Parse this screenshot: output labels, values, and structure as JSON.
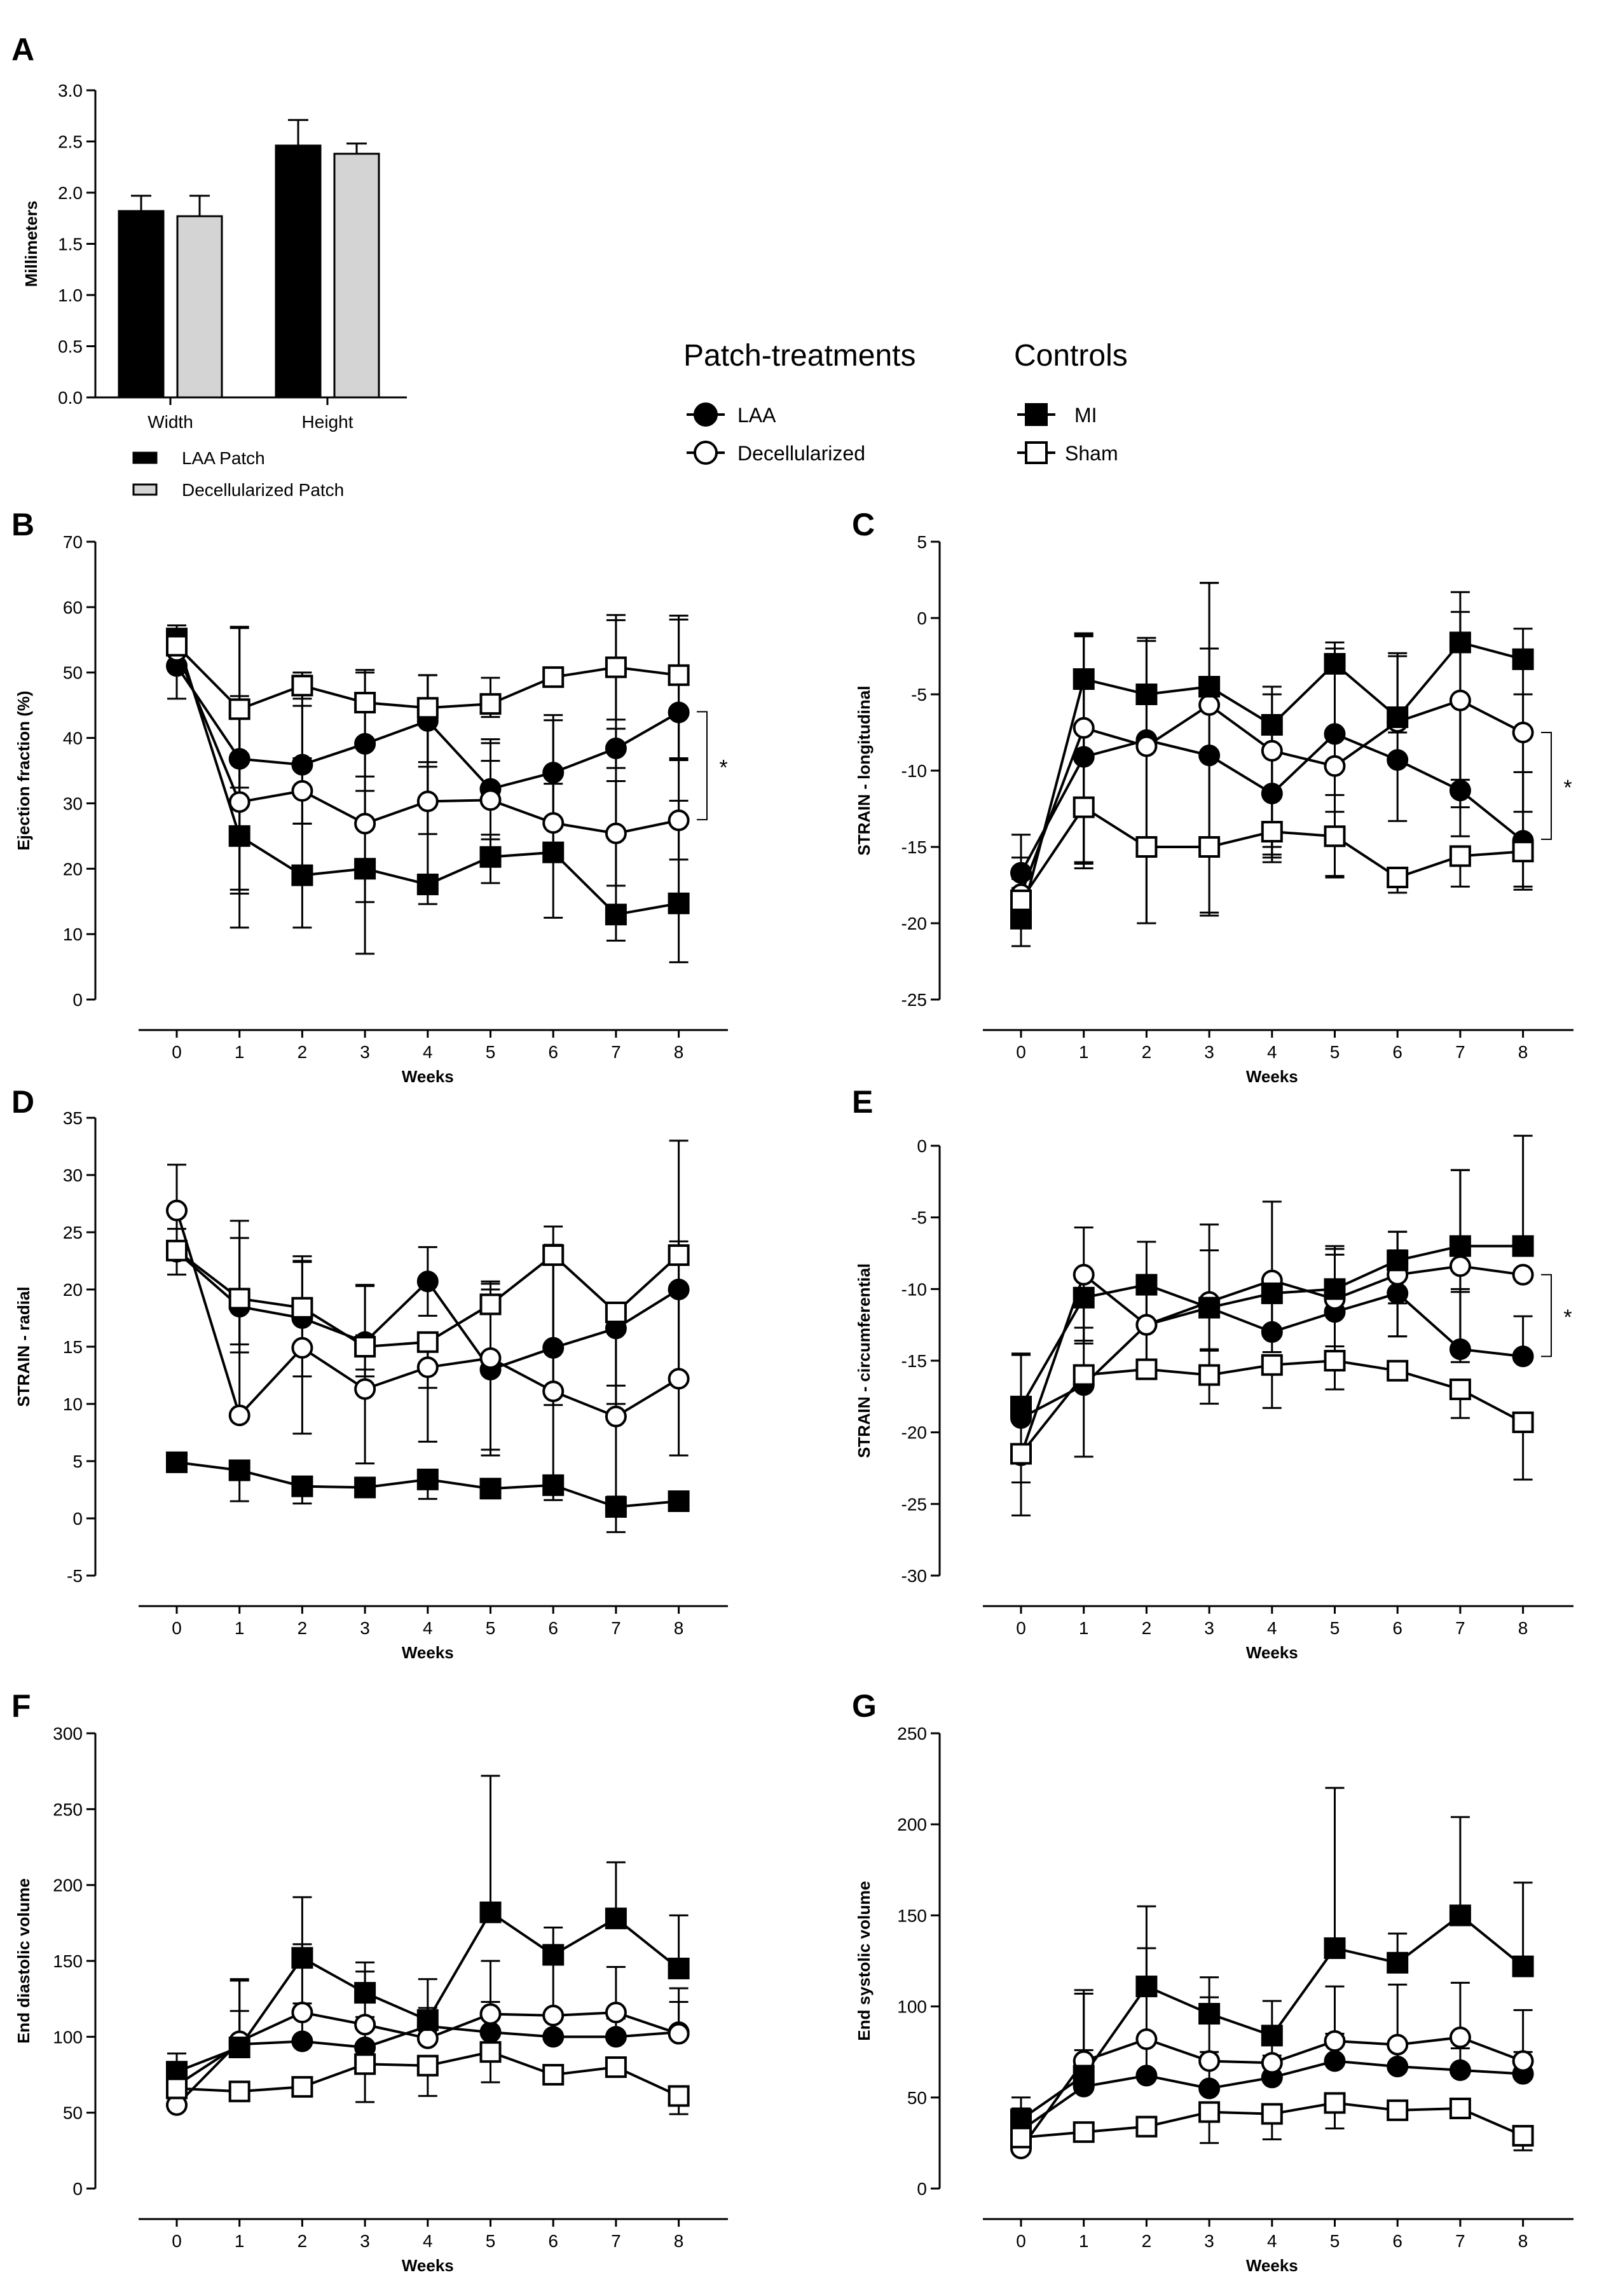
{
  "colors": {
    "ink": "#000000",
    "fill_gray": "#d4d4d4",
    "paper": "#ffffff"
  },
  "legend": {
    "patch_heading": "Patch-treatments",
    "controls_heading": "Controls",
    "items": [
      {
        "label": "LAA",
        "marker": "filled-circle"
      },
      {
        "label": "Decellularized",
        "marker": "open-circle"
      },
      {
        "label": "MI",
        "marker": "filled-square"
      },
      {
        "label": "Sham",
        "marker": "open-square"
      }
    ]
  },
  "chart_data": [
    {
      "id": "A",
      "type": "bar",
      "letter": "A",
      "ylabel": "Millimeters",
      "xlabel": "",
      "ylim": [
        0,
        3
      ],
      "yticks": [
        0,
        0.5,
        1,
        1.5,
        2,
        2.5,
        3
      ],
      "ytick_labels": [
        "0.0",
        "0.5",
        "1.0",
        "1.5",
        "2.0",
        "2.5",
        "3.0"
      ],
      "categories": [
        "Width",
        "Height"
      ],
      "series": [
        {
          "name": "LAA Patch",
          "values": [
            1.82,
            2.46
          ],
          "errors": [
            0.15,
            0.25
          ],
          "style": "black"
        },
        {
          "name": "Decellularized Patch",
          "values": [
            1.77,
            2.38
          ],
          "errors": [
            0.2,
            0.1
          ],
          "style": "gray"
        }
      ]
    },
    {
      "id": "B",
      "type": "line",
      "letter": "B",
      "ylabel": "Ejection fraction (%)",
      "xlabel": "Weeks",
      "x": [
        0,
        1,
        2,
        3,
        4,
        5,
        6,
        7,
        8
      ],
      "ylim": [
        0,
        70
      ],
      "yticks": [
        0,
        10,
        20,
        30,
        40,
        50,
        60,
        70
      ],
      "ytick_labels": [
        "0",
        "10",
        "20",
        "30",
        "40",
        "50",
        "60",
        "70"
      ],
      "significance": {
        "label": "*",
        "y1": 44,
        "y2": 27.5
      },
      "series": [
        {
          "name": "LAA",
          "values": [
            51,
            36.8,
            35.9,
            39.1,
            42.6,
            32.2,
            34.7,
            38.4,
            43.9
          ],
          "err_up": [
            5,
            20,
            9,
            5,
            7,
            7,
            8,
            3,
            0
          ],
          "err_dn": [
            5,
            20,
            9,
            5,
            7,
            7,
            8,
            3,
            7
          ]
        },
        {
          "name": "Decellularized",
          "values": [
            53.3,
            30.2,
            31.9,
            26.9,
            30.3,
            30.5,
            27,
            25.4,
            27.4
          ],
          "err_up": [
            3,
            15,
            5,
            5,
            6,
            6,
            6,
            8,
            3
          ],
          "err_dn": [
            3,
            14,
            5,
            12,
            5,
            6,
            6,
            8,
            6
          ]
        },
        {
          "name": "MI",
          "values": [
            55.2,
            25,
            19,
            20,
            17.6,
            21.8,
            22.5,
            13,
            14.7
          ],
          "err_up": [
            2,
            32,
            31,
            30,
            32,
            18,
            21,
            45,
            44
          ],
          "err_dn": [
            2,
            14,
            8,
            13,
            3,
            4,
            10,
            4,
            9
          ]
        },
        {
          "name": "Sham",
          "values": [
            54.1,
            44.4,
            48,
            45.4,
            44.6,
            45.2,
            49.3,
            50.8,
            49.6
          ],
          "err_up": [
            2,
            2,
            1.5,
            5,
            5,
            4,
            0,
            8,
            8.5
          ],
          "err_dn": [
            1,
            12,
            2,
            19,
            14,
            2,
            0,
            8,
            13
          ]
        }
      ]
    },
    {
      "id": "C",
      "type": "line",
      "letter": "C",
      "ylabel": "STRAIN - longitudinal",
      "xlabel": "Weeks",
      "x": [
        0,
        1,
        2,
        3,
        4,
        5,
        6,
        7,
        8
      ],
      "ylim": [
        -25,
        5
      ],
      "yticks": [
        -25,
        -20,
        -15,
        -10,
        -5,
        0,
        5
      ],
      "ytick_labels": [
        "-25",
        "-20",
        "-15",
        "-10",
        "-5",
        "0",
        "5"
      ],
      "significance": {
        "label": "*",
        "y1": -7.5,
        "y2": -14.5
      },
      "series": [
        {
          "name": "LAA",
          "values": [
            -16.7,
            -9.1,
            -8,
            -9,
            -11.5,
            -7.6,
            -9.3,
            -11.3,
            -14.6
          ],
          "err_up": [
            1,
            8,
            6.7,
            7,
            7,
            6,
            7,
            13,
            4.5
          ],
          "err_dn": [
            1,
            7,
            12,
            6,
            4,
            4,
            4,
            3,
            3
          ]
        },
        {
          "name": "Decellularized",
          "values": [
            -18.1,
            -7.2,
            -8.4,
            -5.7,
            -8.7,
            -9.7,
            -6.8,
            -5.4,
            -7.5
          ],
          "err_up": [
            1,
            6,
            0,
            8,
            0,
            0,
            0,
            0,
            2.5
          ],
          "err_dn": [
            1,
            8.8,
            0,
            9,
            7,
            3,
            0,
            7,
            7
          ]
        },
        {
          "name": "MI",
          "values": [
            -19.7,
            -4,
            -5,
            -4.5,
            -7,
            -3,
            -6.5,
            -1.6,
            -2.7
          ],
          "err_up": [
            5.5,
            3,
            3.5,
            6.8,
            2,
            1,
            4,
            2,
            2
          ],
          "err_dn": [
            1.8,
            12,
            15,
            15,
            8,
            14,
            1,
            9,
            10
          ]
        },
        {
          "name": "Sham",
          "values": [
            -18.5,
            -12.4,
            -15,
            -15,
            -14,
            -14.3,
            -17,
            -15.6,
            -15.3
          ],
          "err_up": [
            0,
            0,
            0,
            0,
            0,
            0,
            0,
            0,
            0
          ],
          "err_dn": [
            1.5,
            4,
            5,
            4.3,
            2,
            2.6,
            1,
            2,
            2.5
          ]
        }
      ]
    },
    {
      "id": "D",
      "type": "line",
      "letter": "D",
      "ylabel": "STRAIN - radial",
      "xlabel": "Weeks",
      "x": [
        0,
        1,
        2,
        3,
        4,
        5,
        6,
        7,
        8
      ],
      "ylim": [
        -5,
        35
      ],
      "yticks": [
        -5,
        0,
        5,
        10,
        15,
        20,
        25,
        30,
        35
      ],
      "ytick_labels": [
        "-5",
        "0",
        "5",
        "10",
        "15",
        "20",
        "25",
        "30",
        "35"
      ],
      "significance": null,
      "series": [
        {
          "name": "LAA",
          "values": [
            23.3,
            18.5,
            17.5,
            15.4,
            20.7,
            13,
            14.9,
            16.6,
            20
          ],
          "err_up": [
            2,
            6,
            5,
            5,
            3,
            7,
            9,
            1,
            13
          ],
          "err_dn": [
            2,
            4,
            3,
            3,
            3,
            7,
            5,
            5,
            8
          ]
        },
        {
          "name": "Decellularized",
          "values": [
            26.9,
            9,
            14.9,
            11.3,
            13.2,
            14,
            11.1,
            8.9,
            12.2
          ],
          "err_up": [
            4,
            17,
            8,
            9,
            3,
            6.5,
            12,
            8,
            12
          ],
          "err_dn": [
            4,
            0,
            7.5,
            6.5,
            6.5,
            8.5,
            8,
            7,
            6.7
          ]
        },
        {
          "name": "MI",
          "values": [
            4.9,
            4.2,
            2.8,
            2.7,
            3.4,
            2.6,
            2.9,
            1,
            1.5
          ],
          "err_up": [
            0,
            0,
            0,
            0,
            0,
            0,
            0,
            0,
            0
          ],
          "err_dn": [
            0,
            2.7,
            1.5,
            0,
            1.7,
            0,
            1.3,
            2.2,
            0
          ]
        },
        {
          "name": "Sham",
          "values": [
            23.4,
            19.2,
            18.4,
            15,
            15.4,
            18.7,
            23,
            18,
            23
          ],
          "err_up": [
            0,
            0,
            4,
            1,
            0,
            2,
            2.5,
            0,
            0
          ],
          "err_dn": [
            0,
            4,
            6,
            2,
            4,
            0,
            8,
            8,
            0
          ]
        }
      ]
    },
    {
      "id": "E",
      "type": "line",
      "letter": "E",
      "ylabel": "STRAIN - circumferential",
      "xlabel": "Weeks",
      "x": [
        0,
        1,
        2,
        3,
        4,
        5,
        6,
        7,
        8
      ],
      "ylim": [
        -30,
        0
      ],
      "yticks": [
        -30,
        -25,
        -20,
        -15,
        -10,
        -5,
        0
      ],
      "ytick_labels": [
        "-30",
        "-25",
        "-20",
        "-15",
        "-10",
        "-5",
        "0"
      ],
      "significance": {
        "label": "*",
        "y1": -9,
        "y2": -14.7
      },
      "series": [
        {
          "name": "LAA",
          "values": [
            -19,
            -16.7,
            -12.5,
            -11.3,
            -13,
            -11.6,
            -10.3,
            -14.2,
            -14.7
          ],
          "err_up": [
            4.5,
            4,
            2.5,
            4,
            0,
            4,
            3,
            4,
            2.8
          ],
          "err_dn": [
            4.5,
            5,
            3,
            0,
            0,
            3,
            3,
            0,
            0
          ]
        },
        {
          "name": "Decellularized",
          "values": [
            -21.6,
            -9,
            -12.5,
            -10.9,
            -9.4,
            -10.7,
            -9,
            -8.4,
            -9
          ],
          "err_up": [
            0,
            3.3,
            3,
            5.4,
            5.5,
            3.5,
            3,
            6.7,
            0
          ],
          "err_dn": [
            4.2,
            4.8,
            3,
            5,
            5,
            4,
            4.3,
            6.7,
            0
          ]
        },
        {
          "name": "MI",
          "values": [
            -18.2,
            -10.6,
            -9.7,
            -11.3,
            -10.3,
            -10,
            -8,
            -7,
            -7
          ],
          "err_up": [
            3.6,
            0,
            3,
            0,
            0,
            3,
            2,
            5.3,
            7.7
          ],
          "err_dn": [
            1,
            3,
            3,
            3,
            3,
            4,
            3,
            3,
            0
          ]
        },
        {
          "name": "Sham",
          "values": [
            -21.5,
            -16,
            -15.6,
            -16,
            -15.3,
            -15,
            -15.7,
            -17,
            -19.3
          ],
          "err_up": [
            0,
            0,
            0,
            1.8,
            0,
            0,
            0,
            0,
            0
          ],
          "err_dn": [
            0,
            0,
            0,
            2,
            3,
            2,
            0,
            2,
            4
          ]
        }
      ]
    },
    {
      "id": "F",
      "type": "line",
      "letter": "F",
      "ylabel": "End diastolic volume",
      "xlabel": "Weeks",
      "x": [
        0,
        1,
        2,
        3,
        4,
        5,
        6,
        7,
        8
      ],
      "ylim": [
        0,
        300
      ],
      "yticks": [
        0,
        50,
        100,
        150,
        200,
        250,
        300
      ],
      "ytick_labels": [
        "0",
        "50",
        "100",
        "150",
        "200",
        "250",
        "300"
      ],
      "significance": null,
      "series": [
        {
          "name": "LAA",
          "values": [
            68,
            95,
            97,
            93,
            107,
            103,
            100,
            100,
            103
          ],
          "err_up": [
            12,
            22,
            25,
            20,
            10,
            20,
            15,
            12,
            20
          ],
          "err_dn": [
            0,
            0,
            0,
            0,
            0,
            0,
            0,
            0,
            0
          ]
        },
        {
          "name": "Decellularized",
          "values": [
            55,
            97,
            116,
            108,
            99,
            115,
            114,
            116,
            102
          ],
          "err_up": [
            0,
            40,
            45,
            35,
            20,
            35,
            35,
            30,
            30
          ],
          "err_dn": [
            0,
            0,
            0,
            0,
            0,
            0,
            0,
            0,
            0
          ]
        },
        {
          "name": "MI",
          "values": [
            77,
            93,
            152,
            129,
            111,
            182,
            154,
            178,
            145
          ],
          "err_up": [
            12,
            45,
            40,
            20,
            27,
            90,
            18,
            37,
            35
          ],
          "err_dn": [
            0,
            0,
            0,
            0,
            0,
            0,
            0,
            0,
            0
          ]
        },
        {
          "name": "Sham",
          "values": [
            66,
            64,
            67,
            82,
            81,
            90,
            75,
            80,
            61
          ],
          "err_up": [
            0,
            0,
            0,
            0,
            0,
            0,
            0,
            0,
            0
          ],
          "err_dn": [
            0,
            0,
            0,
            25,
            20,
            20,
            0,
            5,
            12
          ]
        }
      ]
    },
    {
      "id": "G",
      "type": "line",
      "letter": "G",
      "ylabel": "End systolic volume",
      "xlabel": "Weeks",
      "x": [
        0,
        1,
        2,
        3,
        4,
        5,
        6,
        7,
        8
      ],
      "ylim": [
        0,
        250
      ],
      "yticks": [
        0,
        50,
        100,
        150,
        200,
        250
      ],
      "ytick_labels": [
        "0",
        "50",
        "100",
        "150",
        "200",
        "250"
      ],
      "significance": null,
      "series": [
        {
          "name": "LAA",
          "values": [
            32,
            56,
            62,
            55,
            61,
            70,
            67,
            65,
            63
          ],
          "err_up": [
            12,
            20,
            20,
            20,
            12,
            15,
            12,
            12,
            12
          ],
          "err_dn": [
            0,
            0,
            0,
            0,
            0,
            0,
            0,
            0,
            0
          ]
        },
        {
          "name": "Decellularized",
          "values": [
            22,
            70,
            82,
            70,
            69,
            81,
            79,
            83,
            70
          ],
          "err_up": [
            0,
            39,
            50,
            35,
            20,
            30,
            33,
            30,
            28
          ],
          "err_dn": [
            0,
            0,
            0,
            0,
            0,
            0,
            0,
            0,
            0
          ]
        },
        {
          "name": "MI",
          "values": [
            38,
            62,
            111,
            96,
            84,
            132,
            124,
            150,
            122
          ],
          "err_up": [
            12,
            45,
            44,
            20,
            19,
            88,
            16,
            54,
            46
          ],
          "err_dn": [
            0,
            0,
            0,
            0,
            0,
            0,
            0,
            0,
            0
          ]
        },
        {
          "name": "Sham",
          "values": [
            28,
            31,
            34,
            42,
            41,
            47,
            43,
            44,
            29
          ],
          "err_up": [
            0,
            0,
            0,
            0,
            0,
            0,
            0,
            0,
            0
          ],
          "err_dn": [
            0,
            0,
            0,
            17,
            14,
            14,
            0,
            0,
            8
          ]
        }
      ]
    }
  ]
}
